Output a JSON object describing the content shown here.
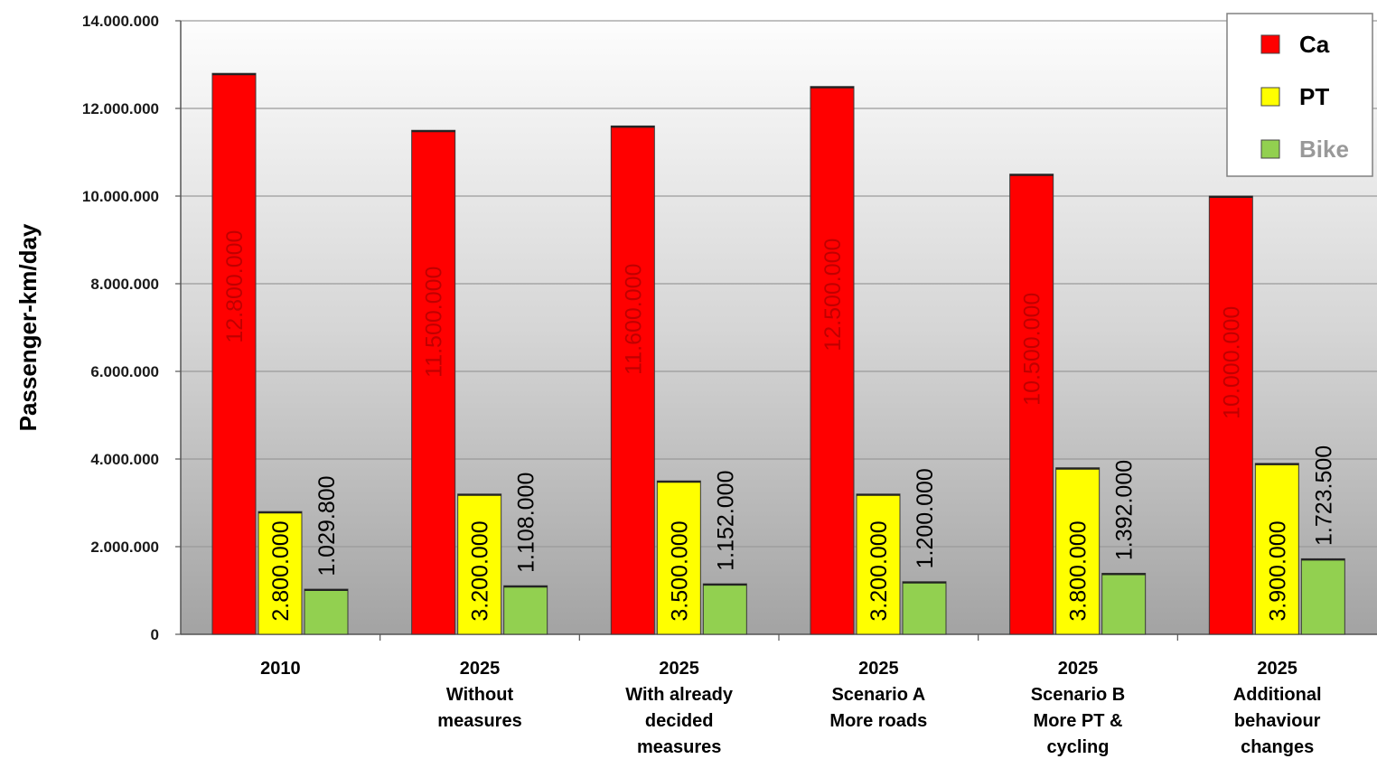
{
  "chart_data": {
    "type": "bar",
    "ylabel": "Passenger-km/day",
    "ylim": [
      0,
      14000000
    ],
    "yticks": [
      0,
      2000000,
      4000000,
      6000000,
      8000000,
      10000000,
      12000000,
      14000000
    ],
    "ytick_labels": [
      "0",
      "2.000.000",
      "4.000.000",
      "6.000.000",
      "8.000.000",
      "10.000.000",
      "12.000.000",
      "14.000.000"
    ],
    "grid": true,
    "legend_position": "top-right",
    "categories": [
      [
        "2010"
      ],
      [
        "2025",
        "Without",
        "measures"
      ],
      [
        "2025",
        "With already",
        "decided",
        "measures"
      ],
      [
        "2025",
        "Scenario A",
        "More roads"
      ],
      [
        "2025",
        "Scenario B",
        "More PT &",
        "cycling"
      ],
      [
        "2025",
        "Additional",
        "behaviour",
        "changes"
      ]
    ],
    "series": [
      {
        "name": "Ca",
        "color": "#ff0000",
        "label_color": "#c00000",
        "legend_color": "#000000",
        "values": [
          12800000,
          11500000,
          11600000,
          12500000,
          10500000,
          10000000
        ],
        "value_labels": [
          "12.800.000",
          "11.500.000",
          "11.600.000",
          "12.500.000",
          "10.500.000",
          "10.000.000"
        ]
      },
      {
        "name": "PT",
        "color": "#ffff00",
        "label_color": "#000000",
        "legend_color": "#000000",
        "values": [
          2800000,
          3200000,
          3500000,
          3200000,
          3800000,
          3900000
        ],
        "value_labels": [
          "2.800.000",
          "3.200.000",
          "3.500.000",
          "3.200.000",
          "3.800.000",
          "3.900.000"
        ]
      },
      {
        "name": "Bike",
        "color": "#92d050",
        "label_color": "#000000",
        "legend_color": "#999999",
        "values": [
          1029800,
          1108000,
          1152000,
          1200000,
          1392000,
          1723500
        ],
        "value_labels": [
          "1.029.800",
          "1.108.000",
          "1.152.000",
          "1.200.000",
          "1.392.000",
          "1.723.500"
        ]
      }
    ]
  }
}
